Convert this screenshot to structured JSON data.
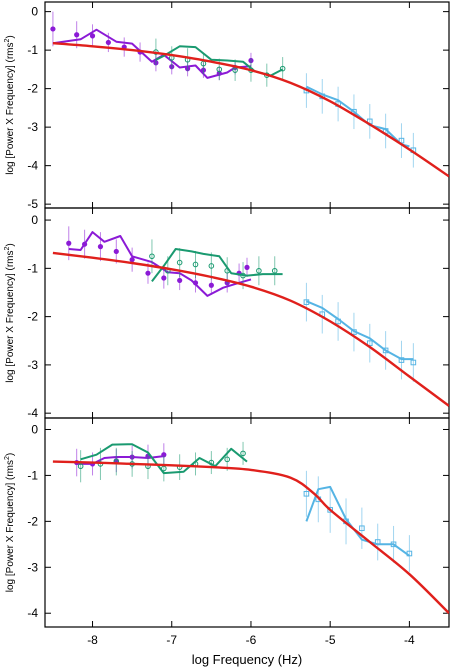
{
  "colors": {
    "model": "#e0201c",
    "purple": "#8b1ad6",
    "green": "#1a9a70",
    "blue": "#55b4e4",
    "axis": "#000000"
  },
  "chart_data": {
    "type": "line",
    "xlabel": "log Frequency (Hz)",
    "ylabel_text": "log [Power X Frequency] (rms",
    "ylabel_sup": "2",
    "ylabel_end": ")",
    "xlim": [
      -8.6,
      -3.5
    ],
    "xticks": [
      -8,
      -7,
      -6,
      -5,
      -4
    ],
    "panels": [
      {
        "ylim": [
          -5.1,
          0.25
        ],
        "yticks": [
          0,
          -1,
          -2,
          -3,
          -4,
          -5
        ],
        "model": [
          [
            -8.5,
            -0.82
          ],
          [
            -8,
            -0.9
          ],
          [
            -7.5,
            -1.0
          ],
          [
            -7,
            -1.13
          ],
          [
            -6.5,
            -1.3
          ],
          [
            -6,
            -1.52
          ],
          [
            -5.5,
            -1.85
          ],
          [
            -5,
            -2.33
          ],
          [
            -4.5,
            -2.93
          ],
          [
            -4,
            -3.58
          ],
          [
            -3.5,
            -4.28
          ]
        ],
        "series": [
          {
            "color_key": "purple",
            "marker": "dot",
            "line": [
              [
                -8.5,
                -0.82
              ],
              [
                -8.15,
                -0.72
              ],
              [
                -7.95,
                -0.47
              ],
              [
                -7.7,
                -0.78
              ],
              [
                -7.5,
                -0.83
              ],
              [
                -7.25,
                -1.3
              ],
              [
                -7.1,
                -1.12
              ],
              [
                -6.9,
                -1.45
              ],
              [
                -6.7,
                -1.4
              ],
              [
                -6.55,
                -1.72
              ],
              [
                -6.3,
                -1.58
              ],
              [
                -6.2,
                -1.45
              ],
              [
                -6.0,
                -1.42
              ]
            ],
            "points": [
              [
                -8.5,
                -0.45,
                0.45
              ],
              [
                -8.2,
                -0.6,
                0.35
              ],
              [
                -8,
                -0.63,
                0.3
              ],
              [
                -7.8,
                -0.8,
                0.25
              ],
              [
                -7.6,
                -0.92,
                0.25
              ],
              [
                -7.4,
                -1.05,
                0.25
              ],
              [
                -7.2,
                -1.33,
                0.22
              ],
              [
                -7,
                -1.43,
                0.2
              ],
              [
                -6.8,
                -1.48,
                0.2
              ],
              [
                -6.6,
                -1.52,
                0.2
              ],
              [
                -6.4,
                -1.6,
                0.18
              ],
              [
                -6.2,
                -1.45,
                0.18
              ],
              [
                -6.0,
                -1.27,
                0.2
              ]
            ]
          },
          {
            "color_key": "green",
            "marker": "circle",
            "line": [
              [
                -7.2,
                -1.25
              ],
              [
                -7.1,
                -1.15
              ],
              [
                -6.9,
                -0.9
              ],
              [
                -6.7,
                -0.92
              ],
              [
                -6.5,
                -1.25
              ],
              [
                -6.3,
                -1.27
              ],
              [
                -6.1,
                -1.3
              ],
              [
                -5.95,
                -1.55
              ],
              [
                -5.75,
                -1.66
              ],
              [
                -5.6,
                -1.5
              ]
            ],
            "points": [
              [
                -7.2,
                -1.05,
                0.35
              ],
              [
                -7,
                -1.2,
                0.3
              ],
              [
                -6.8,
                -1.25,
                0.3
              ],
              [
                -6.6,
                -1.35,
                0.28
              ],
              [
                -6.4,
                -1.5,
                0.28
              ],
              [
                -6.2,
                -1.52,
                0.28
              ],
              [
                -6,
                -1.52,
                0.3
              ],
              [
                -5.8,
                -1.65,
                0.3
              ],
              [
                -5.6,
                -1.48,
                0.3
              ]
            ]
          },
          {
            "color_key": "blue",
            "marker": "square",
            "line": [
              [
                -5.3,
                -1.95
              ],
              [
                -5.1,
                -2.15
              ],
              [
                -4.9,
                -2.3
              ],
              [
                -4.7,
                -2.6
              ],
              [
                -4.5,
                -2.95
              ],
              [
                -4.3,
                -3.05
              ],
              [
                -4.1,
                -3.45
              ],
              [
                -4.0,
                -3.5
              ]
            ],
            "points": [
              [
                -5.3,
                -2.05,
                0.45
              ],
              [
                -5.1,
                -2.2,
                0.45
              ],
              [
                -4.9,
                -2.4,
                0.45
              ],
              [
                -4.7,
                -2.6,
                0.45
              ],
              [
                -4.5,
                -2.85,
                0.45
              ],
              [
                -4.3,
                -3.1,
                0.45
              ],
              [
                -4.1,
                -3.35,
                0.45
              ],
              [
                -3.95,
                -3.6,
                0.45
              ]
            ]
          }
        ]
      },
      {
        "ylim": [
          -4.1,
          0.25
        ],
        "yticks": [
          0,
          -1,
          -2,
          -3,
          -4
        ],
        "model": [
          [
            -8.5,
            -0.68
          ],
          [
            -8,
            -0.78
          ],
          [
            -7.5,
            -0.89
          ],
          [
            -7,
            -1.02
          ],
          [
            -6.5,
            -1.18
          ],
          [
            -6,
            -1.38
          ],
          [
            -5.5,
            -1.67
          ],
          [
            -5,
            -2.1
          ],
          [
            -4.5,
            -2.63
          ],
          [
            -4,
            -3.24
          ],
          [
            -3.5,
            -3.85
          ]
        ],
        "series": [
          {
            "color_key": "purple",
            "marker": "dot",
            "line": [
              [
                -8.3,
                -0.6
              ],
              [
                -8.15,
                -0.62
              ],
              [
                -8,
                -0.25
              ],
              [
                -7.85,
                -0.45
              ],
              [
                -7.65,
                -0.33
              ],
              [
                -7.5,
                -0.75
              ],
              [
                -7.25,
                -0.87
              ],
              [
                -7.05,
                -1.08
              ],
              [
                -6.9,
                -1.1
              ],
              [
                -6.75,
                -1.25
              ],
              [
                -6.55,
                -1.57
              ],
              [
                -6.35,
                -1.4
              ],
              [
                -6.15,
                -1.3
              ],
              [
                -6.0,
                -1.23
              ]
            ],
            "points": [
              [
                -8.3,
                -0.48,
                0.35
              ],
              [
                -8.1,
                -0.5,
                0.3
              ],
              [
                -7.9,
                -0.55,
                0.3
              ],
              [
                -7.7,
                -0.65,
                0.25
              ],
              [
                -7.5,
                -0.82,
                0.25
              ],
              [
                -7.3,
                -1.1,
                0.22
              ],
              [
                -7.1,
                -1.2,
                0.22
              ],
              [
                -6.9,
                -1.25,
                0.2
              ],
              [
                -6.7,
                -1.3,
                0.2
              ],
              [
                -6.5,
                -1.35,
                0.2
              ],
              [
                -6.3,
                -1.3,
                0.2
              ],
              [
                -6.15,
                -1.1,
                0.2
              ],
              [
                -6.05,
                -0.98,
                0.2
              ]
            ]
          },
          {
            "color_key": "green",
            "marker": "circle",
            "line": [
              [
                -7.25,
                -1.27
              ],
              [
                -7.1,
                -0.95
              ],
              [
                -6.95,
                -0.6
              ],
              [
                -6.75,
                -0.65
              ],
              [
                -6.6,
                -0.7
              ],
              [
                -6.4,
                -0.75
              ],
              [
                -6.25,
                -1.1
              ],
              [
                -6.05,
                -1.15
              ],
              [
                -5.85,
                -1.12
              ],
              [
                -5.6,
                -1.12
              ]
            ],
            "points": [
              [
                -7.25,
                -0.75,
                0.35
              ],
              [
                -7.05,
                -1.05,
                0.3
              ],
              [
                -6.9,
                -0.88,
                0.3
              ],
              [
                -6.7,
                -0.92,
                0.28
              ],
              [
                -6.5,
                -0.95,
                0.28
              ],
              [
                -6.3,
                -1.05,
                0.28
              ],
              [
                -6.1,
                -1.15,
                0.28
              ],
              [
                -5.9,
                -1.05,
                0.3
              ],
              [
                -5.7,
                -1.05,
                0.3
              ]
            ]
          },
          {
            "color_key": "blue",
            "marker": "square",
            "line": [
              [
                -5.3,
                -1.68
              ],
              [
                -5.1,
                -1.82
              ],
              [
                -4.9,
                -2.05
              ],
              [
                -4.7,
                -2.3
              ],
              [
                -4.5,
                -2.45
              ],
              [
                -4.3,
                -2.7
              ],
              [
                -4.1,
                -2.88
              ],
              [
                -3.95,
                -2.88
              ]
            ],
            "points": [
              [
                -5.3,
                -1.7,
                0.4
              ],
              [
                -5.1,
                -1.95,
                0.4
              ],
              [
                -4.9,
                -2.1,
                0.4
              ],
              [
                -4.7,
                -2.32,
                0.4
              ],
              [
                -4.5,
                -2.55,
                0.4
              ],
              [
                -4.3,
                -2.7,
                0.4
              ],
              [
                -4.1,
                -2.9,
                0.4
              ],
              [
                -3.95,
                -2.95,
                0.4
              ]
            ]
          }
        ]
      },
      {
        "ylim": [
          -4.3,
          0.25
        ],
        "yticks": [
          0,
          -1,
          -2,
          -3,
          -4
        ],
        "model": [
          [
            -8.5,
            -0.7
          ],
          [
            -8,
            -0.72
          ],
          [
            -7.5,
            -0.75
          ],
          [
            -7,
            -0.78
          ],
          [
            -6.5,
            -0.82
          ],
          [
            -6,
            -0.88
          ],
          [
            -5.5,
            -1.05
          ],
          [
            -5.2,
            -1.4
          ],
          [
            -5,
            -1.75
          ],
          [
            -4.5,
            -2.45
          ],
          [
            -4,
            -3.15
          ],
          [
            -3.5,
            -4.0
          ]
        ],
        "series": [
          {
            "color_key": "purple",
            "marker": "dot",
            "line": [
              [
                -8.2,
                -0.75
              ],
              [
                -8.0,
                -0.75
              ],
              [
                -7.85,
                -0.62
              ],
              [
                -7.7,
                -0.6
              ],
              [
                -7.5,
                -0.6
              ],
              [
                -7.3,
                -0.62
              ],
              [
                -7.1,
                -0.58
              ]
            ],
            "points": [
              [
                -8.2,
                -0.72,
                0.3
              ],
              [
                -8.0,
                -0.75,
                0.25
              ],
              [
                -7.7,
                -0.68,
                0.25
              ],
              [
                -7.5,
                -0.6,
                0.25
              ],
              [
                -7.3,
                -0.58,
                0.25
              ],
              [
                -7.1,
                -0.55,
                0.25
              ]
            ]
          },
          {
            "color_key": "green",
            "marker": "circle",
            "line": [
              [
                -8.15,
                -0.65
              ],
              [
                -7.95,
                -0.55
              ],
              [
                -7.75,
                -0.33
              ],
              [
                -7.5,
                -0.32
              ],
              [
                -7.3,
                -0.5
              ],
              [
                -7.1,
                -0.95
              ],
              [
                -6.85,
                -0.92
              ],
              [
                -6.65,
                -0.62
              ],
              [
                -6.45,
                -0.8
              ],
              [
                -6.25,
                -0.42
              ],
              [
                -6.05,
                -0.7
              ]
            ],
            "points": [
              [
                -8.15,
                -0.8,
                0.35
              ],
              [
                -7.9,
                -0.75,
                0.35
              ],
              [
                -7.7,
                -0.7,
                0.3
              ],
              [
                -7.5,
                -0.75,
                0.28
              ],
              [
                -7.3,
                -0.8,
                0.28
              ],
              [
                -7.1,
                -0.85,
                0.28
              ],
              [
                -6.9,
                -0.82,
                0.28
              ],
              [
                -6.7,
                -0.75,
                0.25
              ],
              [
                -6.5,
                -0.72,
                0.25
              ],
              [
                -6.3,
                -0.65,
                0.25
              ],
              [
                -6.1,
                -0.52,
                0.25
              ]
            ]
          },
          {
            "color_key": "blue",
            "marker": "square",
            "line": [
              [
                -5.3,
                -2.0
              ],
              [
                -5.15,
                -1.3
              ],
              [
                -5.0,
                -1.25
              ],
              [
                -4.8,
                -1.95
              ],
              [
                -4.6,
                -2.4
              ],
              [
                -4.4,
                -2.5
              ],
              [
                -4.2,
                -2.5
              ],
              [
                -4.0,
                -2.75
              ]
            ],
            "points": [
              [
                -5.3,
                -1.4,
                0.5
              ],
              [
                -5.15,
                -1.52,
                0.5
              ],
              [
                -5.0,
                -1.75,
                0.5
              ],
              [
                -4.8,
                -2.0,
                0.5
              ],
              [
                -4.6,
                -2.15,
                0.45
              ],
              [
                -4.4,
                -2.45,
                0.4
              ],
              [
                -4.2,
                -2.5,
                0.4
              ],
              [
                -4.0,
                -2.7,
                0.4
              ]
            ]
          }
        ]
      }
    ]
  }
}
